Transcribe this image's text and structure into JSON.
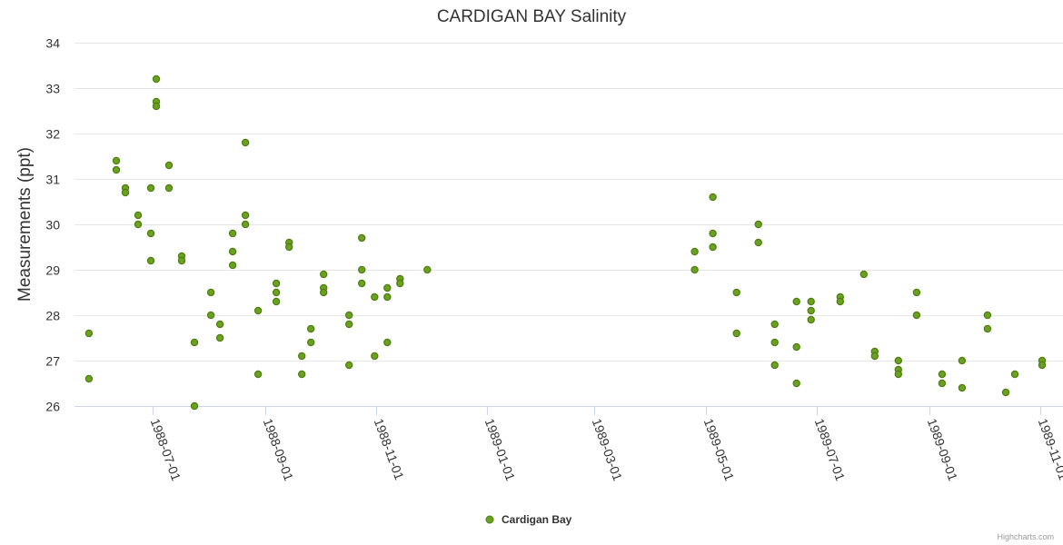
{
  "chart_data": {
    "type": "scatter",
    "title": "CARDIGAN BAY Salinity",
    "ylabel": "Measurements (ppt)",
    "xlabel": "",
    "ylim": [
      26,
      34
    ],
    "y_ticks": [
      26,
      27,
      28,
      29,
      30,
      31,
      32,
      33,
      34
    ],
    "xlim": [
      "1988-05-22",
      "1989-11-01"
    ],
    "x_ticks": [
      "1988-07-01",
      "1988-09-01",
      "1988-11-01",
      "1989-01-01",
      "1989-03-01",
      "1989-05-01",
      "1989-07-01",
      "1989-09-01",
      "1989-11-01"
    ],
    "grid": true,
    "legend_position": "bottom-center",
    "series": [
      {
        "name": "Cardigan Bay",
        "color": "#6aa220",
        "marker_edge_color": "#4e7d10",
        "points": [
          {
            "x": "1988-05-27",
            "y": 27.6
          },
          {
            "x": "1988-05-27",
            "y": 26.6
          },
          {
            "x": "1988-06-11",
            "y": 31.4
          },
          {
            "x": "1988-06-11",
            "y": 31.2
          },
          {
            "x": "1988-06-16",
            "y": 30.8
          },
          {
            "x": "1988-06-16",
            "y": 30.7
          },
          {
            "x": "1988-06-23",
            "y": 30.2
          },
          {
            "x": "1988-06-23",
            "y": 30.0
          },
          {
            "x": "1988-06-30",
            "y": 30.8
          },
          {
            "x": "1988-06-30",
            "y": 29.8
          },
          {
            "x": "1988-06-30",
            "y": 29.2
          },
          {
            "x": "1988-07-03",
            "y": 33.2
          },
          {
            "x": "1988-07-03",
            "y": 32.7
          },
          {
            "x": "1988-07-03",
            "y": 32.6
          },
          {
            "x": "1988-07-10",
            "y": 31.3
          },
          {
            "x": "1988-07-10",
            "y": 30.8
          },
          {
            "x": "1988-07-17",
            "y": 29.3
          },
          {
            "x": "1988-07-17",
            "y": 29.2
          },
          {
            "x": "1988-07-24",
            "y": 27.4
          },
          {
            "x": "1988-07-24",
            "y": 26.0
          },
          {
            "x": "1988-08-02",
            "y": 28.5
          },
          {
            "x": "1988-08-02",
            "y": 28.0
          },
          {
            "x": "1988-08-07",
            "y": 27.8
          },
          {
            "x": "1988-08-07",
            "y": 27.5
          },
          {
            "x": "1988-08-14",
            "y": 29.8
          },
          {
            "x": "1988-08-14",
            "y": 29.4
          },
          {
            "x": "1988-08-14",
            "y": 29.1
          },
          {
            "x": "1988-08-21",
            "y": 31.8
          },
          {
            "x": "1988-08-21",
            "y": 30.2
          },
          {
            "x": "1988-08-21",
            "y": 30.0
          },
          {
            "x": "1988-08-28",
            "y": 28.1
          },
          {
            "x": "1988-08-28",
            "y": 26.7
          },
          {
            "x": "1988-09-07",
            "y": 28.7
          },
          {
            "x": "1988-09-07",
            "y": 28.5
          },
          {
            "x": "1988-09-07",
            "y": 28.3
          },
          {
            "x": "1988-09-14",
            "y": 29.6
          },
          {
            "x": "1988-09-14",
            "y": 29.5
          },
          {
            "x": "1988-09-21",
            "y": 27.1
          },
          {
            "x": "1988-09-21",
            "y": 26.7
          },
          {
            "x": "1988-09-26",
            "y": 27.7
          },
          {
            "x": "1988-09-26",
            "y": 27.4
          },
          {
            "x": "1988-10-03",
            "y": 28.9
          },
          {
            "x": "1988-10-03",
            "y": 28.6
          },
          {
            "x": "1988-10-03",
            "y": 28.5
          },
          {
            "x": "1988-10-17",
            "y": 28.0
          },
          {
            "x": "1988-10-17",
            "y": 27.8
          },
          {
            "x": "1988-10-17",
            "y": 26.9
          },
          {
            "x": "1988-10-24",
            "y": 29.7
          },
          {
            "x": "1988-10-24",
            "y": 29.0
          },
          {
            "x": "1988-10-24",
            "y": 28.7
          },
          {
            "x": "1988-10-31",
            "y": 28.4
          },
          {
            "x": "1988-10-31",
            "y": 27.1
          },
          {
            "x": "1988-11-07",
            "y": 28.6
          },
          {
            "x": "1988-11-07",
            "y": 28.4
          },
          {
            "x": "1988-11-07",
            "y": 27.4
          },
          {
            "x": "1988-11-14",
            "y": 28.8
          },
          {
            "x": "1988-11-14",
            "y": 28.7
          },
          {
            "x": "1988-11-29",
            "y": 29.0
          },
          {
            "x": "1989-04-25",
            "y": 29.4
          },
          {
            "x": "1989-04-25",
            "y": 29.0
          },
          {
            "x": "1989-05-05",
            "y": 30.6
          },
          {
            "x": "1989-05-05",
            "y": 29.8
          },
          {
            "x": "1989-05-05",
            "y": 29.5
          },
          {
            "x": "1989-05-18",
            "y": 28.5
          },
          {
            "x": "1989-05-18",
            "y": 27.6
          },
          {
            "x": "1989-05-30",
            "y": 30.0
          },
          {
            "x": "1989-05-30",
            "y": 29.6
          },
          {
            "x": "1989-06-08",
            "y": 27.8
          },
          {
            "x": "1989-06-08",
            "y": 27.4
          },
          {
            "x": "1989-06-08",
            "y": 26.9
          },
          {
            "x": "1989-06-20",
            "y": 28.3
          },
          {
            "x": "1989-06-20",
            "y": 27.3
          },
          {
            "x": "1989-06-20",
            "y": 26.5
          },
          {
            "x": "1989-06-28",
            "y": 28.3
          },
          {
            "x": "1989-06-28",
            "y": 28.1
          },
          {
            "x": "1989-06-28",
            "y": 27.9
          },
          {
            "x": "1989-07-14",
            "y": 28.4
          },
          {
            "x": "1989-07-14",
            "y": 28.3
          },
          {
            "x": "1989-07-27",
            "y": 28.9
          },
          {
            "x": "1989-08-02",
            "y": 27.2
          },
          {
            "x": "1989-08-02",
            "y": 27.1
          },
          {
            "x": "1989-08-15",
            "y": 27.0
          },
          {
            "x": "1989-08-15",
            "y": 26.8
          },
          {
            "x": "1989-08-15",
            "y": 26.7
          },
          {
            "x": "1989-08-25",
            "y": 28.5
          },
          {
            "x": "1989-08-25",
            "y": 28.0
          },
          {
            "x": "1989-09-08",
            "y": 26.7
          },
          {
            "x": "1989-09-08",
            "y": 26.5
          },
          {
            "x": "1989-09-19",
            "y": 27.0
          },
          {
            "x": "1989-09-19",
            "y": 26.4
          },
          {
            "x": "1989-10-03",
            "y": 28.0
          },
          {
            "x": "1989-10-03",
            "y": 27.7
          },
          {
            "x": "1989-10-13",
            "y": 26.3
          },
          {
            "x": "1989-10-18",
            "y": 26.7
          },
          {
            "x": "1989-11-02",
            "y": 27.0
          },
          {
            "x": "1989-11-02",
            "y": 26.9
          }
        ]
      }
    ]
  },
  "legend": {
    "label": "Cardigan Bay"
  },
  "credits": "Highcharts.com"
}
